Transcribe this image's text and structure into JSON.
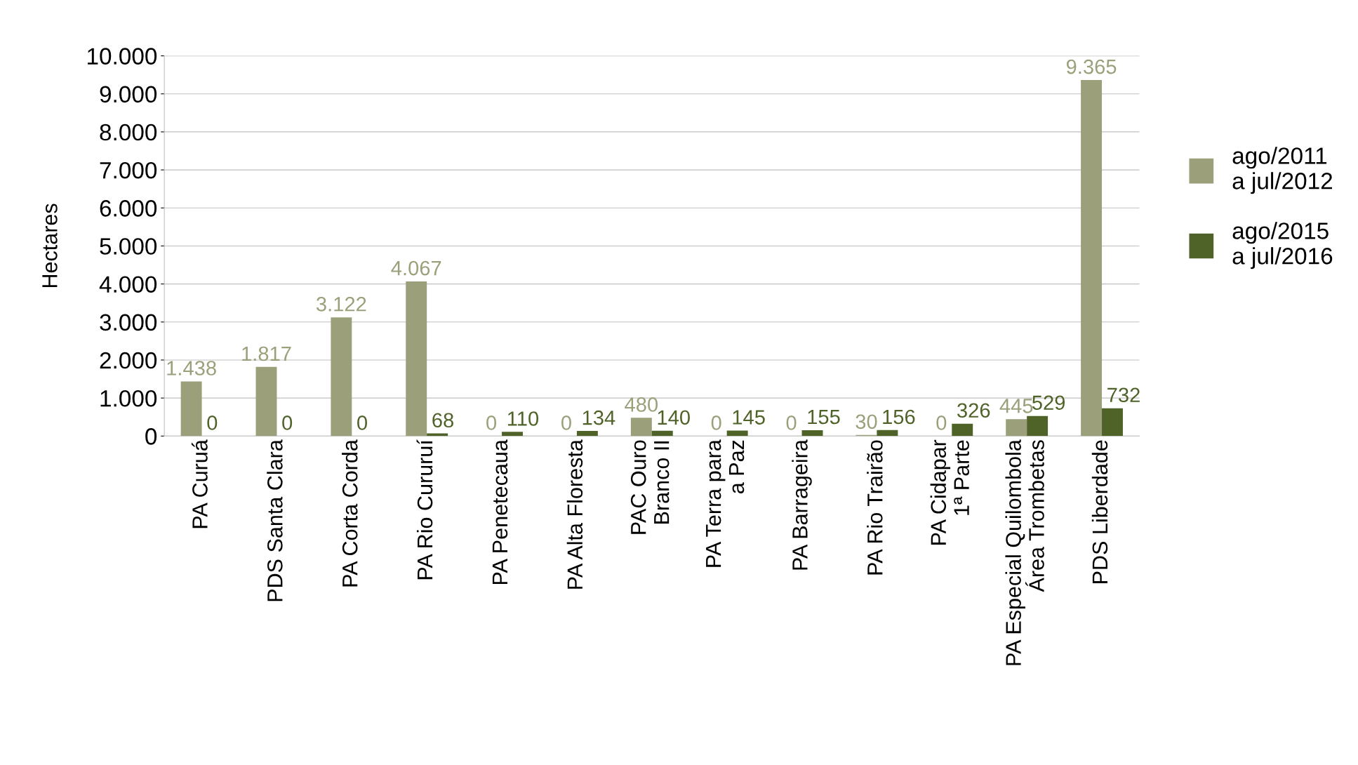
{
  "chart_data": {
    "type": "bar",
    "ylabel": "Hectares",
    "categories": [
      "PA Curuá",
      "PDS Santa Clara",
      "PA Corta Corda",
      "PA Rio Cururuí",
      "PA Penetecaua",
      "PA Alta Floresta",
      "PAC Ouro\nBranco II",
      "PA Terra para\na Paz",
      "PA Barrageira",
      "PA Rio Trairão",
      "PA Cidapar\n1ª Parte",
      "PA Especial Quilombola\nÁrea Trombetas",
      "PDS Liberdade"
    ],
    "series": [
      {
        "name": "ago/2011\na jul/2012",
        "color": "#9ba07a",
        "values": [
          1438,
          1817,
          3122,
          4067,
          0,
          0,
          480,
          0,
          0,
          30,
          0,
          445,
          9365
        ],
        "value_labels": [
          "1.438",
          "1.817",
          "3.122",
          "4.067",
          "0",
          "0",
          "480",
          "0",
          "0",
          "30",
          "0",
          "445",
          "9.365"
        ]
      },
      {
        "name": "ago/2015\na jul/2016",
        "color": "#4f6228",
        "values": [
          0,
          0,
          0,
          68,
          110,
          134,
          140,
          145,
          155,
          156,
          326,
          529,
          732
        ],
        "value_labels": [
          "0",
          "0",
          "0",
          "68",
          "110",
          "134",
          "140",
          "145",
          "155",
          "156",
          "326",
          "529",
          "732"
        ]
      }
    ],
    "ylim": [
      0,
      10000
    ],
    "yticks": [
      0,
      {
        "value": 1000,
        "label": "1.000"
      },
      {
        "value": 2000,
        "label": "2.000"
      },
      {
        "value": 3000,
        "label": "3.000"
      },
      {
        "value": 4000,
        "label": "4.000"
      },
      {
        "value": 5000,
        "label": "5.000"
      },
      {
        "value": 6000,
        "label": "6.000"
      },
      {
        "value": 7000,
        "label": "7.000"
      },
      {
        "value": 8000,
        "label": "8.000"
      },
      {
        "value": 9000,
        "label": "9.000"
      },
      {
        "value": 10000,
        "label": "10.000"
      }
    ],
    "grid": "y",
    "legend": "right"
  }
}
